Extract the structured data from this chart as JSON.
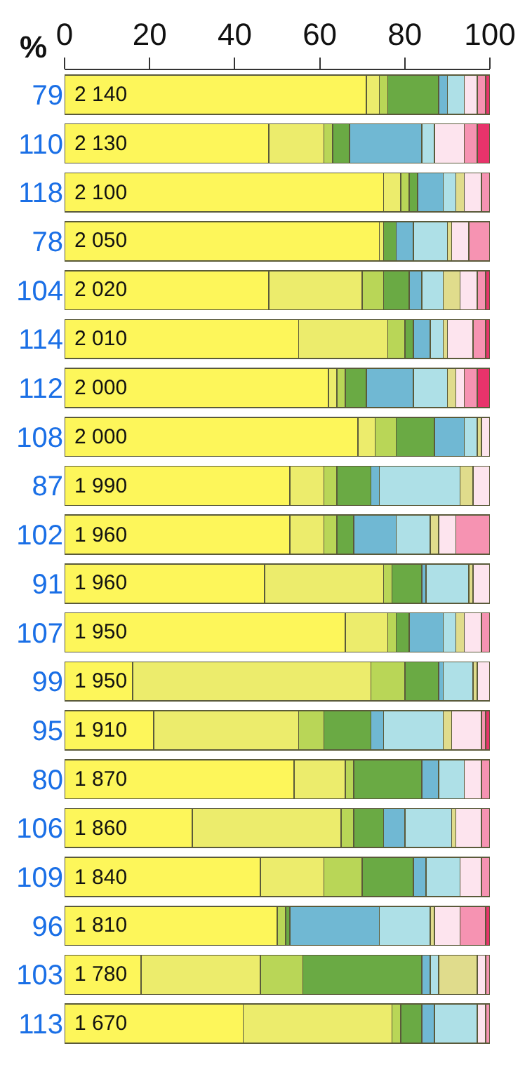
{
  "chart_data": {
    "type": "bar",
    "orientation": "horizontal",
    "stacked": true,
    "xlabel": "%",
    "categories": [
      "79",
      "110",
      "118",
      "78",
      "104",
      "114",
      "112",
      "108",
      "87",
      "102",
      "91",
      "107",
      "99",
      "95",
      "80",
      "106",
      "109",
      "96",
      "103",
      "113"
    ],
    "xlim": [
      0,
      100
    ],
    "xticks": [
      0,
      20,
      40,
      60,
      80,
      100
    ],
    "series": [
      {
        "color": "#fdf65a",
        "values": [
          71,
          48,
          75,
          74,
          48,
          55,
          62,
          69,
          53,
          53,
          47,
          66,
          16,
          21,
          54,
          30,
          46,
          50,
          18,
          42
        ]
      },
      {
        "color": "#ecec6c",
        "values": [
          3,
          13,
          4,
          1,
          22,
          21,
          2,
          4,
          8,
          8,
          28,
          10,
          56,
          34,
          12,
          35,
          15,
          0,
          28,
          35
        ]
      },
      {
        "color": "#b9d657",
        "values": [
          2,
          2,
          2,
          0,
          5,
          4,
          2,
          5,
          3,
          3,
          2,
          2,
          8,
          6,
          2,
          3,
          9,
          2,
          10,
          2
        ]
      },
      {
        "color": "#6aaa44",
        "values": [
          12,
          4,
          2,
          3,
          6,
          2,
          5,
          9,
          8,
          4,
          7,
          3,
          8,
          11,
          16,
          7,
          12,
          1,
          28,
          5
        ]
      },
      {
        "color": "#70b8d3",
        "values": [
          2,
          17,
          6,
          4,
          3,
          4,
          11,
          7,
          2,
          10,
          1,
          8,
          1,
          3,
          4,
          5,
          3,
          21,
          2,
          3
        ]
      },
      {
        "color": "#aee0e7",
        "values": [
          4,
          3,
          3,
          8,
          5,
          3,
          8,
          3,
          19,
          8,
          10,
          3,
          7,
          14,
          6,
          11,
          8,
          12,
          2,
          10
        ]
      },
      {
        "color": "#e0dc8c",
        "values": [
          0,
          0,
          2,
          1,
          4,
          1,
          2,
          1,
          3,
          2,
          1,
          2,
          1,
          2,
          0,
          1,
          0,
          1,
          9,
          0
        ]
      },
      {
        "color": "#fde4ee",
        "values": [
          3,
          7,
          4,
          4,
          4,
          6,
          2,
          2,
          4,
          4,
          4,
          4,
          3,
          7,
          4,
          6,
          5,
          6,
          2,
          2
        ]
      },
      {
        "color": "#f693b2",
        "values": [
          2,
          3,
          2,
          5,
          2,
          3,
          3,
          0,
          0,
          8,
          0,
          2,
          0,
          1,
          2,
          2,
          2,
          6,
          1,
          1
        ]
      },
      {
        "color": "#e8336b",
        "values": [
          1,
          3,
          0,
          0,
          1,
          1,
          3,
          0,
          0,
          0,
          0,
          0,
          0,
          1,
          0,
          0,
          0,
          1,
          0,
          0
        ]
      }
    ],
    "annotations": [
      "2 140",
      "2 130",
      "2 100",
      "2 050",
      "2 020",
      "2 010",
      "2 000",
      "2 000",
      "1 990",
      "1 960",
      "1 960",
      "1 950",
      "1 950",
      "1 910",
      "1 870",
      "1 860",
      "1 840",
      "1 810",
      "1 780",
      "1 670"
    ]
  }
}
